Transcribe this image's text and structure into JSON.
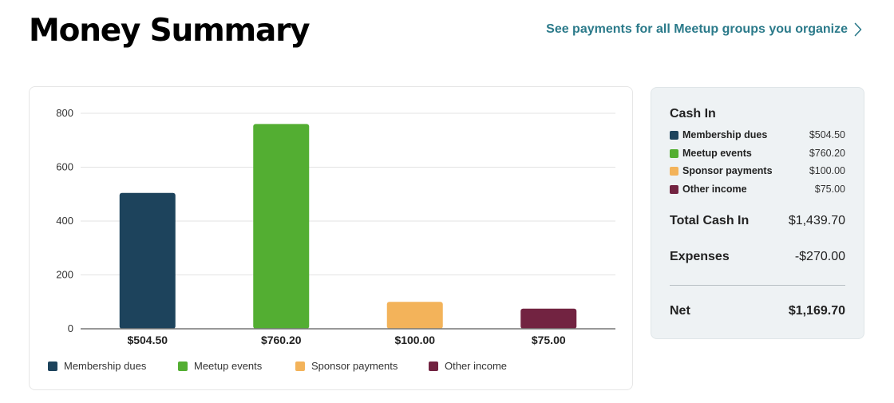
{
  "header": {
    "title": "Money Summary",
    "link_label": "See payments for all Meetup groups you organize",
    "link_color": "#2b7a8a"
  },
  "chart_data": {
    "type": "bar",
    "categories": [
      "Membership dues",
      "Meetup events",
      "Sponsor payments",
      "Other income"
    ],
    "values": [
      504.5,
      760.2,
      100.0,
      75.0
    ],
    "value_labels": [
      "$504.50",
      "$760.20",
      "$100.00",
      "$75.00"
    ],
    "colors": [
      "#1d435c",
      "#53ae32",
      "#f3b35a",
      "#722341"
    ],
    "y_ticks": [
      "0",
      "200",
      "400",
      "600",
      "800"
    ],
    "ylim": [
      0,
      800
    ],
    "grid": true,
    "legend_position": "bottom-left",
    "title": "",
    "xlabel": "",
    "ylabel": ""
  },
  "summary": {
    "cash_in_title": "Cash In",
    "items": [
      {
        "label": "Membership dues",
        "value": "$504.50",
        "color": "#1d435c"
      },
      {
        "label": "Meetup events",
        "value": "$760.20",
        "color": "#53ae32"
      },
      {
        "label": "Sponsor payments",
        "value": "$100.00",
        "color": "#f3b35a"
      },
      {
        "label": "Other income",
        "value": "$75.00",
        "color": "#722341"
      }
    ],
    "total_label": "Total Cash In",
    "total_value": "$1,439.70",
    "expenses_label": "Expenses",
    "expenses_value": "-$270.00",
    "net_label": "Net",
    "net_value": "$1,169.70"
  }
}
